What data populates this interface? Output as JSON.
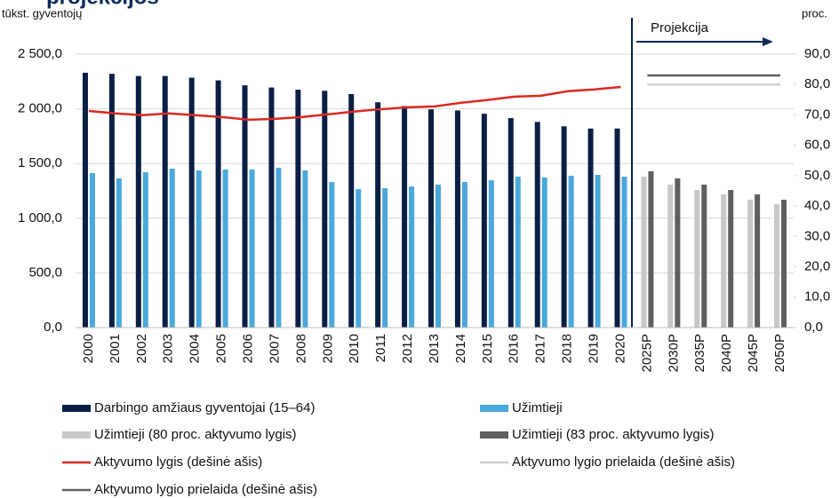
{
  "chart_data": {
    "type": "bar",
    "title": "projekcijos",
    "y_label": "tūkst. gyventojų",
    "y2_label": "proc.",
    "annotation": "Projekcija",
    "categories": [
      "2000",
      "2001",
      "2002",
      "2003",
      "2004",
      "2005",
      "2006",
      "2007",
      "2008",
      "2009",
      "2010",
      "2011",
      "2012",
      "2013",
      "2014",
      "2015",
      "2016",
      "2017",
      "2018",
      "2019",
      "2020",
      "2025P",
      "2030P",
      "2035P",
      "2040P",
      "2045P",
      "2050P"
    ],
    "ylim": [
      0,
      2500
    ],
    "yticks": [
      {
        "value": 0,
        "label": "0,0"
      },
      {
        "value": 500,
        "label": "500,0"
      },
      {
        "value": 1000,
        "label": "1 000,0"
      },
      {
        "value": 1500,
        "label": "1 500,0"
      },
      {
        "value": 2000,
        "label": "2 000,0"
      },
      {
        "value": 2500,
        "label": "2 500,0"
      }
    ],
    "y2lim": [
      0,
      90
    ],
    "y2ticks": [
      {
        "value": 0,
        "label": "0,0"
      },
      {
        "value": 10,
        "label": "10,0"
      },
      {
        "value": 20,
        "label": "20,0"
      },
      {
        "value": 30,
        "label": "30,0"
      },
      {
        "value": 40,
        "label": "40,0"
      },
      {
        "value": 50,
        "label": "50,0"
      },
      {
        "value": 60,
        "label": "60,0"
      },
      {
        "value": 70,
        "label": "70,0"
      },
      {
        "value": 80,
        "label": "80,0"
      },
      {
        "value": 90,
        "label": "90,0"
      }
    ],
    "grid": true,
    "series": [
      {
        "name": "Darbingo amžiaus gyventojai  (15–64)",
        "type": "bar",
        "color": "#0b1f45",
        "values": [
          2330,
          2320,
          2300,
          2300,
          2285,
          2260,
          2215,
          2195,
          2175,
          2165,
          2135,
          2060,
          2025,
          1995,
          1985,
          1955,
          1915,
          1880,
          1840,
          1820,
          1820,
          null,
          null,
          null,
          null,
          null,
          null
        ]
      },
      {
        "name": "Užimtieji",
        "type": "bar",
        "color": "#4aa8db",
        "values": [
          1412,
          1364,
          1420,
          1453,
          1437,
          1445,
          1445,
          1461,
          1437,
          1331,
          1266,
          1274,
          1290,
          1307,
          1331,
          1347,
          1380,
          1372,
          1388,
          1396,
          1380,
          null,
          null,
          null,
          null,
          null,
          null
        ]
      },
      {
        "name": "Užimtieji (80 proc. aktyvumo lygis)",
        "type": "bar",
        "color": "#c8c8c8",
        "values": [
          null,
          null,
          null,
          null,
          null,
          null,
          null,
          null,
          null,
          null,
          null,
          null,
          null,
          null,
          null,
          null,
          null,
          null,
          null,
          null,
          null,
          1380,
          1307,
          1258,
          1218,
          1169,
          1128
        ]
      },
      {
        "name": "Užimtieji (83 proc. aktyvumo lygis)",
        "type": "bar",
        "color": "#5f5f5f",
        "values": [
          null,
          null,
          null,
          null,
          null,
          null,
          null,
          null,
          null,
          null,
          null,
          null,
          null,
          null,
          null,
          null,
          null,
          null,
          null,
          null,
          null,
          1429,
          1364,
          1307,
          1258,
          1218,
          1169
        ]
      },
      {
        "name": "Aktyvumo lygis (dešinė ašis)",
        "type": "line",
        "axis": "y2",
        "color": "#d92a20",
        "values": [
          71.3,
          70.5,
          69.9,
          70.5,
          69.9,
          69.3,
          68.4,
          68.7,
          69.3,
          70.2,
          71.1,
          71.9,
          72.5,
          72.8,
          74.0,
          74.9,
          76.0,
          76.3,
          77.8,
          78.4,
          79.2,
          null,
          null,
          null,
          null,
          null,
          null
        ]
      },
      {
        "name": "Aktyvumo lygio prielaida (dešinė ašis)",
        "type": "line",
        "axis": "y2",
        "color": "#d0d0d0",
        "values": [
          null,
          null,
          null,
          null,
          null,
          null,
          null,
          null,
          null,
          null,
          null,
          null,
          null,
          null,
          null,
          null,
          null,
          null,
          null,
          null,
          null,
          80,
          80,
          80,
          80,
          80,
          80
        ]
      },
      {
        "name": "Aktyvumo lygio prielaida (dešinė ašis)",
        "type": "line",
        "axis": "y2",
        "color": "#606060",
        "values": [
          null,
          null,
          null,
          null,
          null,
          null,
          null,
          null,
          null,
          null,
          null,
          null,
          null,
          null,
          null,
          null,
          null,
          null,
          null,
          null,
          null,
          83,
          83,
          83,
          83,
          83,
          83
        ]
      }
    ]
  }
}
